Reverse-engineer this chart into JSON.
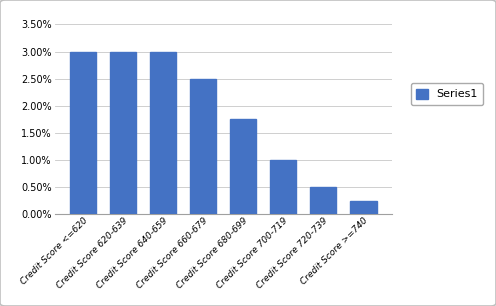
{
  "categories": [
    "Credit Score <=620",
    "Credit Score 620-639",
    "Credit Score 640-659",
    "Credit Score 660-679",
    "Credit Score 680-699",
    "Credit Score 700-719",
    "Credit Score 720-739",
    "Credit Score >=740"
  ],
  "values": [
    0.03,
    0.03,
    0.03,
    0.025,
    0.0175,
    0.01,
    0.005,
    0.0025
  ],
  "bar_color": "#4472C4",
  "ylim": [
    0,
    0.035
  ],
  "yticks": [
    0.0,
    0.005,
    0.01,
    0.015,
    0.02,
    0.025,
    0.03,
    0.035
  ],
  "legend_label": "Series1",
  "chart_bg": "#FFFFFF",
  "figure_bg": "#FFFFFF",
  "outer_frame_color": "#C0C0C0",
  "grid_color": "#C8C8C8",
  "spine_color": "#A0A0A0"
}
